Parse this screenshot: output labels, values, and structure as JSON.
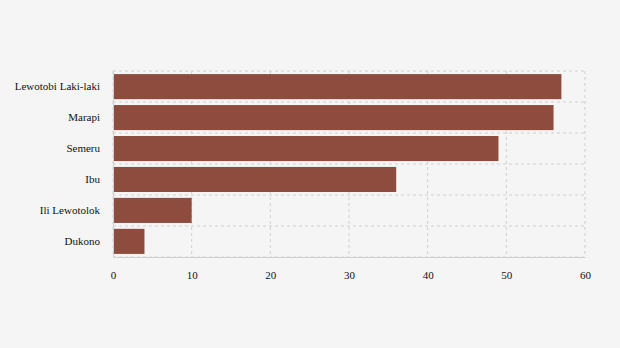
{
  "chart_data": {
    "type": "bar",
    "orientation": "horizontal",
    "categories": [
      "Lewotobi Laki-laki",
      "Marapi",
      "Semeru",
      "Ibu",
      "Ili Lewotolok",
      "Dukono"
    ],
    "values": [
      57,
      56,
      49,
      36,
      10,
      4
    ],
    "color": "#8d4c3e",
    "xlim": [
      0,
      60
    ],
    "xticks": [
      0,
      10,
      20,
      30,
      40,
      50,
      60
    ],
    "grid": true
  }
}
